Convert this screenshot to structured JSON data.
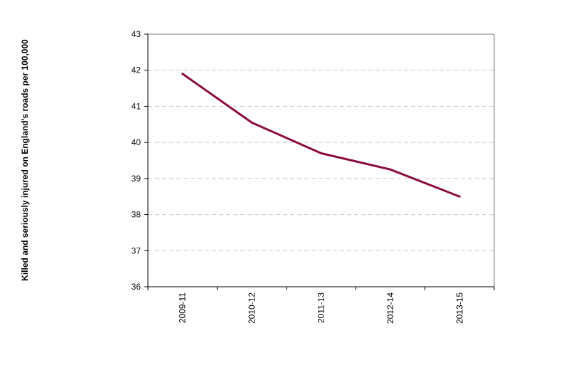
{
  "chart_data": {
    "type": "line",
    "title": "",
    "xlabel": "",
    "ylabel": "Killed and seriously  injured on England's roads per 100,000",
    "categories": [
      "2009-11",
      "2010-12",
      "2011-13",
      "2012-14",
      "2013-15"
    ],
    "series": [
      {
        "values": [
          41.9,
          40.55,
          39.7,
          39.25,
          38.5
        ],
        "color": "#8b0d3f"
      }
    ],
    "ylim": [
      36,
      43
    ],
    "yticks": [
      "36",
      "37",
      "38",
      "39",
      "40",
      "41",
      "42",
      "43"
    ],
    "grid": true,
    "legend": "none",
    "colors": {
      "line": "#8b0d3f",
      "gridline": "#c8c8c8",
      "axis": "#000000",
      "frame": "#808080"
    }
  }
}
